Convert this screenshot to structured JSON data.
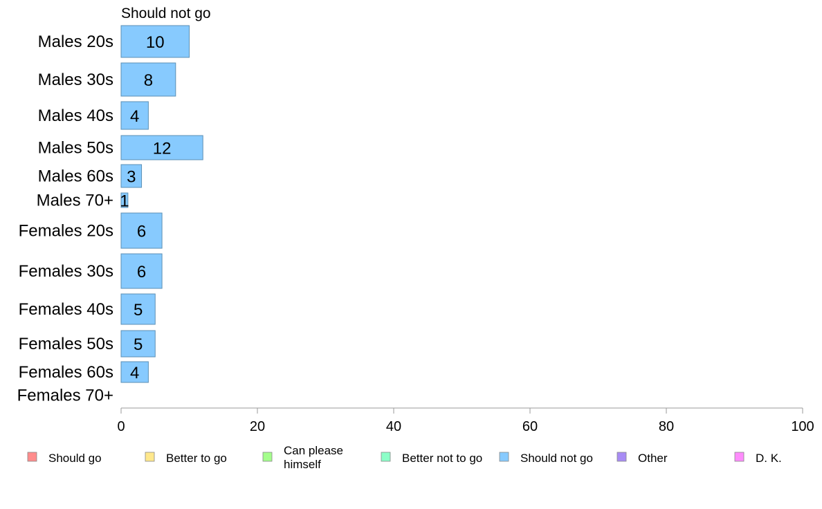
{
  "chart_data": {
    "type": "bar",
    "orientation": "horizontal",
    "title": "Should not go",
    "categories": [
      "Males 20s",
      "Males 30s",
      "Males 40s",
      "Males 50s",
      "Males 60s",
      "Males 70+",
      "Females 20s",
      "Females 30s",
      "Females 40s",
      "Females 50s",
      "Females 60s",
      "Females 70+"
    ],
    "values": [
      10,
      8,
      4,
      12,
      3,
      1,
      6,
      6,
      5,
      5,
      4,
      0
    ],
    "data_labels": [
      "10",
      "8",
      "4",
      "12",
      "3",
      "1",
      "6",
      "6",
      "5",
      "5",
      "4",
      ""
    ],
    "xlim": [
      0,
      100
    ],
    "xticks": [
      0,
      20,
      40,
      60,
      80,
      100
    ],
    "xticklabels": [
      "0",
      "20",
      "40",
      "60",
      "80",
      "100"
    ],
    "grid": false,
    "bar_color": "#87cafe",
    "bar_edge_color": "#5b8fb4",
    "legend": {
      "placement": "bottom",
      "entries": [
        {
          "label": "Should go",
          "color": "#ff8c8c"
        },
        {
          "label": "Better to go",
          "color": "#ffe88c"
        },
        {
          "label": "Can please himself",
          "lines": [
            "Can please",
            "himself"
          ],
          "color": "#a4fe8c"
        },
        {
          "label": "Better not to go",
          "color": "#8cfec8"
        },
        {
          "label": "Should not go",
          "color": "#87cafe"
        },
        {
          "label": "Other",
          "color": "#a88cf5"
        },
        {
          "label": "D. K.",
          "color": "#fe8cfc"
        }
      ]
    }
  }
}
